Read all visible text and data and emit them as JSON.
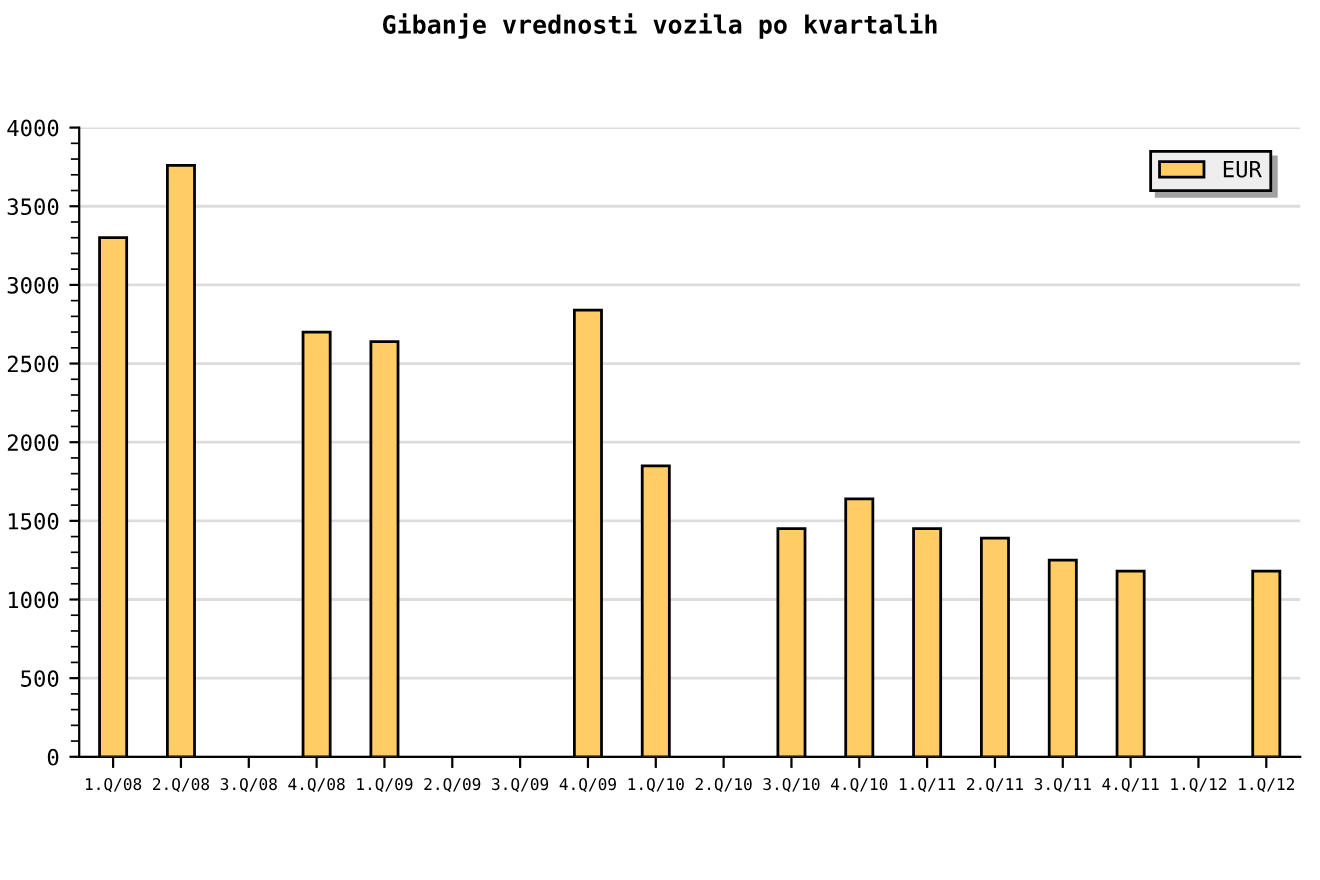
{
  "chart_data": {
    "type": "bar",
    "title": "Gibanje vrednosti vozila po kvartalih",
    "categories": [
      "1.Q/08",
      "2.Q/08",
      "3.Q/08",
      "4.Q/08",
      "1.Q/09",
      "2.Q/09",
      "3.Q/09",
      "4.Q/09",
      "1.Q/10",
      "2.Q/10",
      "3.Q/10",
      "4.Q/10",
      "1.Q/11",
      "2.Q/11",
      "3.Q/11",
      "4.Q/11",
      "1.Q/12",
      "1.Q/12"
    ],
    "series": [
      {
        "name": "EUR",
        "color": "#ffcc66",
        "values": [
          3300,
          3760,
          null,
          2700,
          2640,
          null,
          null,
          2840,
          1850,
          null,
          1450,
          1640,
          1450,
          1390,
          1250,
          1180,
          null,
          1180
        ]
      }
    ],
    "ylim": [
      0,
      4000
    ],
    "yticks": [
      0,
      500,
      1000,
      1500,
      2000,
      2500,
      3000,
      3500,
      4000
    ],
    "grid": "y",
    "legend": "top right"
  }
}
